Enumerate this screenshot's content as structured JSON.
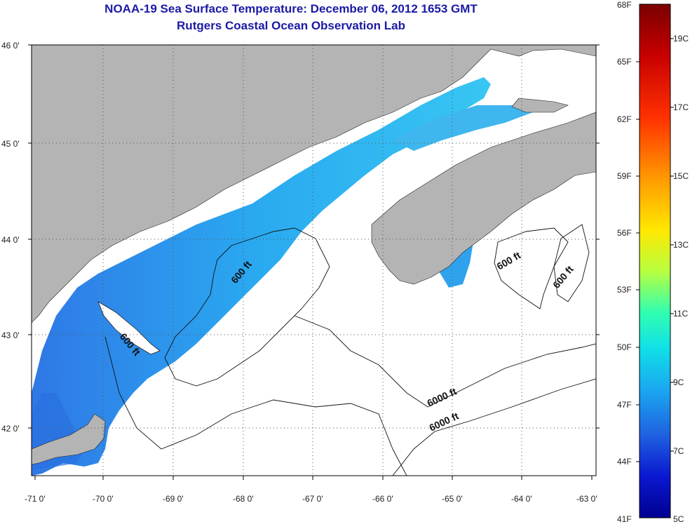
{
  "title": "NOAA-19 Sea Surface Temperature:  December 06, 2012 1653 GMT",
  "subtitle": "Rutgers Coastal Ocean Observation Lab",
  "lat_labels": [
    "46 0'",
    "45 0'",
    "44 0'",
    "43 0'",
    "42 0'"
  ],
  "lon_labels": [
    "-71 0'",
    "-70 0'",
    "-69 0'",
    "-68 0'",
    "-67 0'",
    "-66 0'",
    "-65 0'",
    "-64 0'",
    "-63 0'"
  ],
  "contour_labels": [
    "600 ft",
    "600 ft",
    "600 ft",
    "600 ft",
    "6000 ft"
  ],
  "colorbar": {
    "fahrenheit": [
      "68F",
      "65F",
      "62F",
      "59F",
      "56F",
      "53F",
      "50F",
      "47F",
      "44F",
      "41F"
    ],
    "celsius": [
      "19C",
      "17C",
      "15C",
      "13C",
      "11C",
      "9C",
      "7C",
      "5C"
    ]
  },
  "colors": {
    "land": "#b4b4b4",
    "water_nodata": "#ffffff",
    "sst_cool": "#1f5ad8",
    "sst_mid": "#26b4f0",
    "title": "#1a1aa6"
  }
}
